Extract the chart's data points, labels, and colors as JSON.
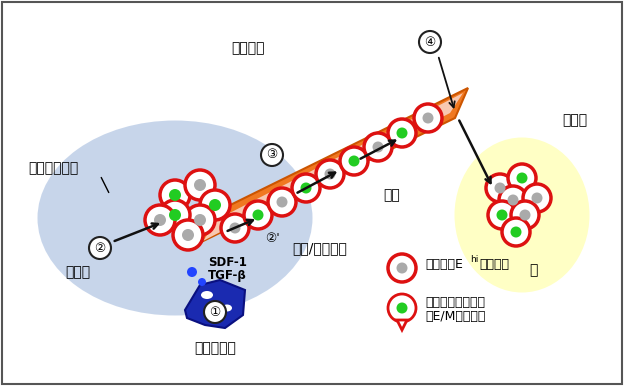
{
  "bg_color": "#ffffff",
  "colors": {
    "light_blue_ellipse": "#c0d0e8",
    "light_yellow": "#ffffc0",
    "vessel_orange": "#f07820",
    "vessel_pink": "#f8c8b0",
    "cancer_border": "#dd1111",
    "inner_gray": "#aaaaaa",
    "inner_green": "#22cc22",
    "fibroblast_blue": "#1a2ab0",
    "fibroblast_edge": "#0a1080",
    "blue_dot": "#2244ff",
    "arrow": "#111111",
    "border": "#555555"
  },
  "texts": {
    "primary_tumor": "乳腺癌原发灶",
    "cancer_cluster": "癌细胞簇",
    "blood_vessel": "血管",
    "metastasis": "转移灶",
    "lung": "肺",
    "epithelial": "上皮化",
    "partial_emt": "上皮/间充质化",
    "fibroblast": "成纤维细胞",
    "sdf1": "SDF-1",
    "tgfb": "TGF-β",
    "num1": "①",
    "num2": "②",
    "num2p": "②'",
    "num3": "③",
    "num4": "④",
    "leg1a": "上皮系（E",
    "leg1b": "hi",
    "leg1c": "）癌細胞",
    "leg2a": "上皮系及间充质系",
    "leg2b": "（E/M）癌细胞"
  }
}
